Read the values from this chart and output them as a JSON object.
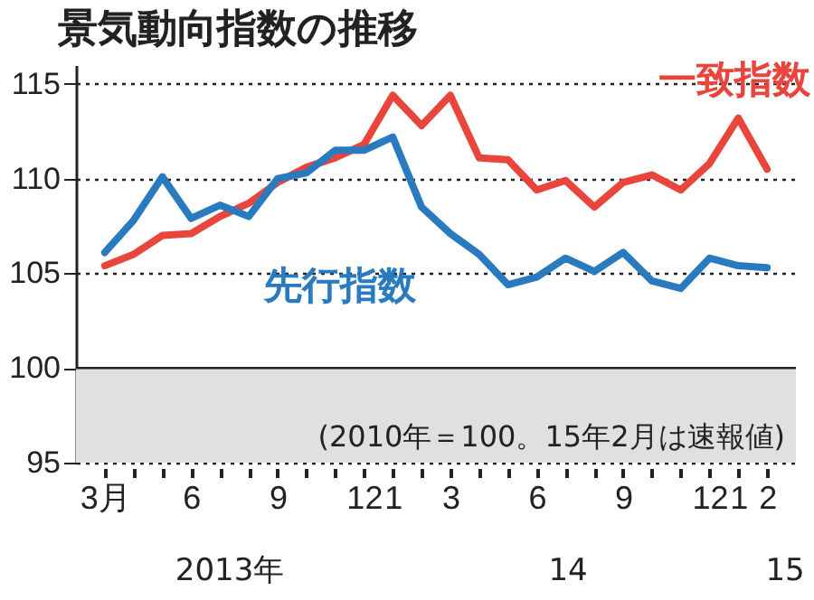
{
  "chart_data": {
    "type": "line",
    "title": "景気動向指数の推移",
    "categories": [
      "3月",
      null,
      null,
      "6",
      null,
      null,
      "9",
      null,
      null,
      "12",
      "1",
      null,
      "3",
      null,
      null,
      "6",
      null,
      null,
      "9",
      null,
      null,
      "12",
      "1",
      "2"
    ],
    "series": [
      {
        "name": "一致指数",
        "color": "#e8453c",
        "values": [
          105.4,
          106.0,
          107.0,
          107.1,
          108.0,
          108.7,
          109.8,
          110.6,
          111.1,
          111.8,
          114.4,
          112.8,
          114.4,
          111.1,
          111.0,
          109.4,
          109.9,
          108.5,
          109.8,
          110.2,
          109.4,
          110.8,
          113.2,
          110.5
        ]
      },
      {
        "name": "先行指数",
        "color": "#2a7abf",
        "values": [
          106.1,
          107.8,
          110.1,
          107.9,
          108.6,
          108.0,
          110.0,
          110.3,
          111.5,
          111.5,
          112.2,
          108.5,
          107.1,
          106.0,
          104.4,
          104.8,
          105.8,
          105.1,
          106.1,
          104.6,
          104.2,
          105.8,
          105.4,
          105.3
        ]
      }
    ],
    "ylim": [
      95,
      116
    ],
    "yticks": [
      95,
      100,
      105,
      110,
      115
    ],
    "grid": "y",
    "legend": false,
    "bands": [
      {
        "axis": "y",
        "from": 95,
        "to": 100,
        "color": "#e0e0e0"
      }
    ],
    "ref_lines": [
      {
        "axis": "y",
        "value": 100,
        "color": "#222222"
      }
    ],
    "annotations": [
      "(2010年＝100。15年2月は速報値)",
      "2013年",
      "14",
      "15"
    ]
  }
}
